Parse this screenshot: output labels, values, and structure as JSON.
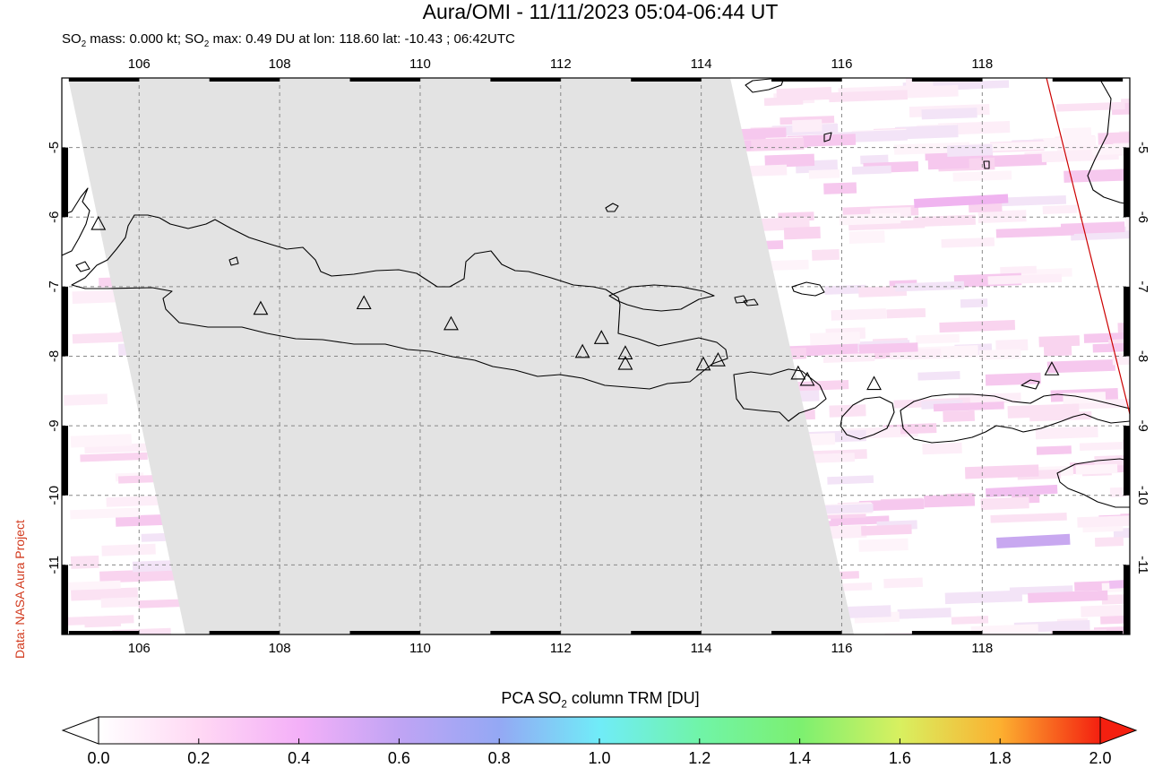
{
  "header": {
    "title": "Aura/OMI - 11/11/2023 05:04-06:44 UT",
    "subtitle_parts": {
      "p1": "SO",
      "s1": "2",
      "p2": " mass: 0.000 kt; SO",
      "s2": "2",
      "p3": " max: 0.49 DU at lon: 118.60 lat: -10.43 ; 06:42UTC"
    },
    "credit": "Data: NASA Aura Project"
  },
  "map": {
    "lon_range": [
      104.9,
      120.1
    ],
    "lat_range": [
      -12.0,
      -4.0
    ],
    "lon_ticks": [
      "106",
      "108",
      "110",
      "112",
      "114",
      "116",
      "118"
    ],
    "lat_ticks": [
      "-5",
      "-6",
      "-7",
      "-8",
      "-9",
      "-10",
      "-11"
    ],
    "lon_tick_values": [
      106,
      108,
      110,
      112,
      114,
      116,
      118
    ],
    "lat_tick_values": [
      -5,
      -6,
      -7,
      -8,
      -9,
      -10,
      -11
    ],
    "no_data_color": "#e3e3e3",
    "coast_color": "#000000",
    "orbit_edge_color": "#cc0000",
    "volcanoes": [
      {
        "lon": 105.42,
        "lat": -6.1
      },
      {
        "lon": 107.73,
        "lat": -7.32
      },
      {
        "lon": 109.2,
        "lat": -7.24
      },
      {
        "lon": 110.44,
        "lat": -7.54
      },
      {
        "lon": 112.31,
        "lat": -7.94
      },
      {
        "lon": 112.58,
        "lat": -7.74
      },
      {
        "lon": 112.92,
        "lat": -7.96
      },
      {
        "lon": 112.92,
        "lat": -8.11
      },
      {
        "lon": 114.03,
        "lat": -8.12
      },
      {
        "lon": 114.24,
        "lat": -8.06
      },
      {
        "lon": 115.38,
        "lat": -8.25
      },
      {
        "lon": 115.51,
        "lat": -8.34
      },
      {
        "lon": 116.46,
        "lat": -8.4
      },
      {
        "lon": 118.99,
        "lat": -8.19
      }
    ]
  },
  "colorbar": {
    "title_parts": {
      "p1": "PCA SO",
      "s1": "2",
      "p2": " column TRM [DU]"
    },
    "labels": [
      "0.0",
      "0.2",
      "0.4",
      "0.6",
      "0.8",
      "1.0",
      "1.2",
      "1.4",
      "1.6",
      "1.8",
      "2.0"
    ],
    "min": 0.0,
    "max": 2.0,
    "colors": [
      "#ffffff",
      "#ffd8f4",
      "#f4b0f8",
      "#c0a4f4",
      "#94a8f4",
      "#70ecf8",
      "#70f4a8",
      "#7cf070",
      "#d8f060",
      "#fcb030",
      "#f42010"
    ]
  }
}
